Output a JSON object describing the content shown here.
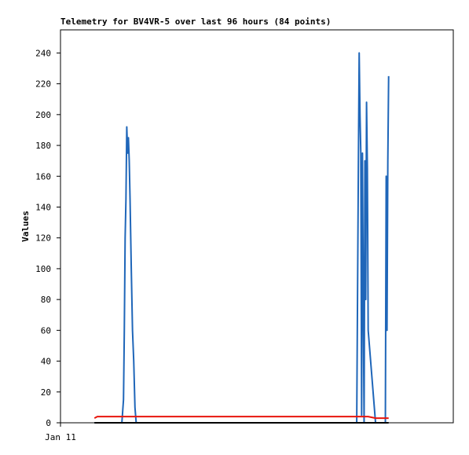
{
  "chart_data": {
    "type": "line",
    "title": "Telemetry for BV4VR-5 over last 96 hours (84 points)",
    "y_label": "Values",
    "x": [
      8.3,
      9.0,
      15.0,
      15.4,
      15.6,
      15.8,
      16.0,
      16.2,
      16.4,
      16.6,
      16.8,
      17.0,
      17.3,
      17.6,
      17.9,
      18.2,
      18.5,
      72.4,
      72.8,
      73.0,
      73.2,
      73.4,
      73.6,
      73.8,
      74.0,
      74.2,
      74.4,
      74.6,
      74.8,
      75.0,
      75.2,
      77.0,
      79.4,
      79.6,
      79.8,
      80.0,
      80.2
    ],
    "series": [
      {
        "color": "#1f66b9",
        "values": [
          0,
          0,
          0,
          15,
          60,
          120,
          145,
          192,
          175,
          185,
          170,
          145,
          100,
          60,
          40,
          10,
          0,
          0,
          165,
          240,
          200,
          175,
          5,
          175,
          80,
          0,
          170,
          80,
          208,
          165,
          60,
          0,
          0,
          160,
          60,
          170,
          225
        ]
      },
      {
        "color": "#e8160c",
        "values": [
          3,
          4,
          4,
          4,
          4,
          4,
          4,
          4,
          4,
          4,
          4,
          4,
          4,
          4,
          4,
          4,
          4,
          4,
          4,
          4,
          4,
          4,
          4,
          4,
          4,
          4,
          4,
          4,
          4,
          4,
          4,
          3,
          3,
          3,
          3,
          3,
          3
        ]
      },
      {
        "color": "#000000",
        "values": [
          0,
          0,
          0,
          0,
          0,
          0,
          0,
          0,
          0,
          0,
          0,
          0,
          0,
          0,
          0,
          0,
          0,
          0,
          0,
          0,
          0,
          0,
          0,
          0,
          0,
          0,
          0,
          0,
          0,
          0,
          0,
          0,
          0,
          0,
          0,
          0,
          0
        ]
      }
    ],
    "xlim": [
      0,
      96
    ],
    "xticks": [
      {
        "value": 0,
        "label": "Jan 11"
      }
    ],
    "ylim": [
      0,
      255
    ],
    "yticks": [
      0,
      20,
      40,
      60,
      80,
      100,
      120,
      140,
      160,
      180,
      200,
      220,
      240
    ]
  }
}
